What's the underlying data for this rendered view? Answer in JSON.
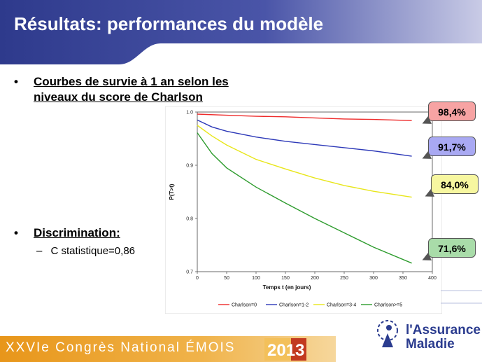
{
  "slide": {
    "title": "Résultats: performances du modèle",
    "bullets": [
      {
        "marker": "•",
        "text_line1": "Courbes de survie à 1 an selon les",
        "text_line2": "niveaux du score de Charlson"
      },
      {
        "marker": "•",
        "text_line1": "Discrimination:"
      }
    ],
    "sub_bullet": {
      "marker": "–",
      "text": "C statistique=0,86"
    },
    "footer": {
      "text": "XXVIe Congrès National ÉMOIS",
      "year_badge": "2013",
      "logo_line1": "l'Assurance",
      "logo_line2": "Maladie"
    },
    "colors": {
      "header_blue": "#2e3a8c",
      "footer_orange": "#e89f1f",
      "logo_blue": "#2b3c8f"
    }
  },
  "callouts": [
    {
      "text": "98,4%",
      "color": "#f7a3a3"
    },
    {
      "text": "91,7%",
      "color": "#a9a9f3"
    },
    {
      "text": "84,0%",
      "color": "#f7f7a0"
    },
    {
      "text": "71,6%",
      "color": "#a9dca9"
    }
  ],
  "chart_data": {
    "type": "line",
    "xlabel": "Temps t (en jours)",
    "ylabel": "P(T>t)",
    "xlim": [
      0,
      400
    ],
    "ylim": [
      0.7,
      1.0
    ],
    "xticks": [
      "0",
      "50",
      "100",
      "150",
      "200",
      "250",
      "300",
      "350",
      "400"
    ],
    "yticks": [
      "0.7",
      "0.8",
      "0.9",
      "1.0"
    ],
    "grid": false,
    "legend_position": "bottom",
    "series": [
      {
        "name": "Charlson=0",
        "color": "#ee2b2b",
        "x": [
          0,
          50,
          100,
          150,
          200,
          250,
          300,
          365
        ],
        "y": [
          0.996,
          0.994,
          0.992,
          0.991,
          0.989,
          0.987,
          0.986,
          0.984
        ]
      },
      {
        "name": "Charlson=1-2",
        "color": "#2d39b8",
        "x": [
          0,
          25,
          50,
          100,
          150,
          200,
          250,
          300,
          365
        ],
        "y": [
          0.985,
          0.972,
          0.964,
          0.953,
          0.945,
          0.939,
          0.933,
          0.927,
          0.917
        ]
      },
      {
        "name": "Charlson=3-4",
        "color": "#e8e61a",
        "x": [
          0,
          25,
          50,
          100,
          150,
          200,
          250,
          300,
          365
        ],
        "y": [
          0.975,
          0.955,
          0.938,
          0.911,
          0.893,
          0.876,
          0.862,
          0.851,
          0.84
        ]
      },
      {
        "name": "Charlson>=5",
        "color": "#2e9c2e",
        "x": [
          0,
          25,
          50,
          100,
          150,
          200,
          250,
          300,
          365
        ],
        "y": [
          0.961,
          0.922,
          0.895,
          0.859,
          0.829,
          0.8,
          0.773,
          0.746,
          0.716
        ]
      }
    ]
  }
}
